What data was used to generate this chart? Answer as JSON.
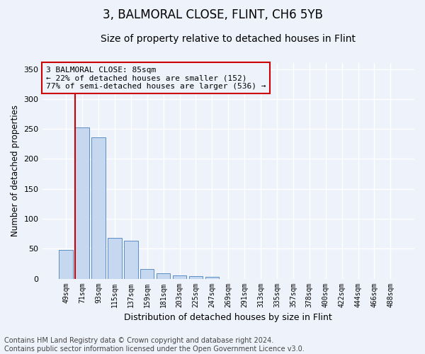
{
  "title1": "3, BALMORAL CLOSE, FLINT, CH6 5YB",
  "title2": "Size of property relative to detached houses in Flint",
  "xlabel": "Distribution of detached houses by size in Flint",
  "ylabel": "Number of detached properties",
  "categories": [
    "49sqm",
    "71sqm",
    "93sqm",
    "115sqm",
    "137sqm",
    "159sqm",
    "181sqm",
    "203sqm",
    "225sqm",
    "247sqm",
    "269sqm",
    "291sqm",
    "313sqm",
    "335sqm",
    "357sqm",
    "378sqm",
    "400sqm",
    "422sqm",
    "444sqm",
    "466sqm",
    "488sqm"
  ],
  "values": [
    48,
    252,
    236,
    68,
    63,
    16,
    9,
    5,
    4,
    3,
    0,
    0,
    0,
    0,
    0,
    0,
    0,
    0,
    0,
    0,
    0
  ],
  "bar_color": "#c5d8f0",
  "bar_edge_color": "#5b8ec4",
  "marker_label_line1": "3 BALMORAL CLOSE: 85sqm",
  "marker_label_line2": "← 22% of detached houses are smaller (152)",
  "marker_label_line3": "77% of semi-detached houses are larger (536) →",
  "vline_color": "#cc0000",
  "box_edge_color": "#cc0000",
  "ylim": [
    0,
    360
  ],
  "yticks": [
    0,
    50,
    100,
    150,
    200,
    250,
    300,
    350
  ],
  "title1_fontsize": 12,
  "title2_fontsize": 10,
  "footnote": "Contains HM Land Registry data © Crown copyright and database right 2024.\nContains public sector information licensed under the Open Government Licence v3.0.",
  "footnote_fontsize": 7,
  "bg_color": "#eef2fb",
  "grid_color": "#ffffff"
}
